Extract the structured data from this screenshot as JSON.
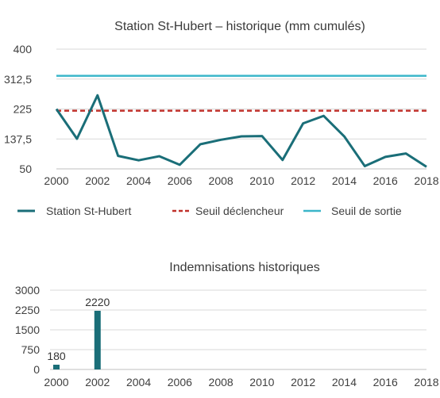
{
  "chart_data": [
    {
      "type": "line",
      "title": "Station St-Hubert – historique (mm cumulés)",
      "xlabel": "",
      "ylabel": "",
      "x": [
        2000,
        2001,
        2002,
        2003,
        2004,
        2005,
        2006,
        2007,
        2008,
        2009,
        2010,
        2011,
        2012,
        2013,
        2014,
        2015,
        2016,
        2017,
        2018
      ],
      "x_tick_labels": [
        "2000",
        "2002",
        "2004",
        "2006",
        "2008",
        "2010",
        "2012",
        "2014",
        "2016",
        "2018"
      ],
      "y_tick_labels": [
        "400",
        "312,5",
        "225",
        "137,5",
        "50"
      ],
      "ylim": [
        50,
        400
      ],
      "grid": true,
      "legend_position": "bottom",
      "series": [
        {
          "name": "Station St-Hubert",
          "style": "solid",
          "color": "#1a6e78",
          "values": [
            225,
            138,
            265,
            88,
            75,
            87,
            62,
            122,
            135,
            145,
            146,
            76,
            183,
            205,
            145,
            58,
            85,
            95,
            56
          ]
        },
        {
          "name": "Seuil déclencheur",
          "style": "dashed",
          "color": "#c0302a",
          "values": [
            220,
            220,
            220,
            220,
            220,
            220,
            220,
            220,
            220,
            220,
            220,
            220,
            220,
            220,
            220,
            220,
            220,
            220,
            220
          ]
        },
        {
          "name": "Seuil de sortie",
          "style": "solid",
          "color": "#3bb6c9",
          "values": [
            322,
            322,
            322,
            322,
            322,
            322,
            322,
            322,
            322,
            322,
            322,
            322,
            322,
            322,
            322,
            322,
            322,
            322,
            322
          ]
        }
      ]
    },
    {
      "type": "bar",
      "title": "Indemnisations historiques",
      "xlabel": "",
      "ylabel": "",
      "x": [
        2000,
        2001,
        2002,
        2003,
        2004,
        2005,
        2006,
        2007,
        2008,
        2009,
        2010,
        2011,
        2012,
        2013,
        2014,
        2015,
        2016,
        2017,
        2018
      ],
      "x_tick_labels": [
        "2000",
        "2002",
        "2004",
        "2006",
        "2008",
        "2010",
        "2012",
        "2014",
        "2016",
        "2018"
      ],
      "y_tick_labels": [
        "3000",
        "2250",
        "1500",
        "750",
        "0"
      ],
      "ylim": [
        0,
        3000
      ],
      "grid": true,
      "color": "#1a6e78",
      "values": [
        180,
        0,
        2220,
        0,
        0,
        0,
        0,
        0,
        0,
        0,
        0,
        0,
        0,
        0,
        0,
        0,
        0,
        0,
        0
      ],
      "data_labels": [
        "180",
        "",
        "2220",
        "",
        "",
        "",
        "",
        "",
        "",
        "",
        "",
        "",
        "",
        "",
        "",
        "",
        "",
        "",
        ""
      ]
    }
  ]
}
